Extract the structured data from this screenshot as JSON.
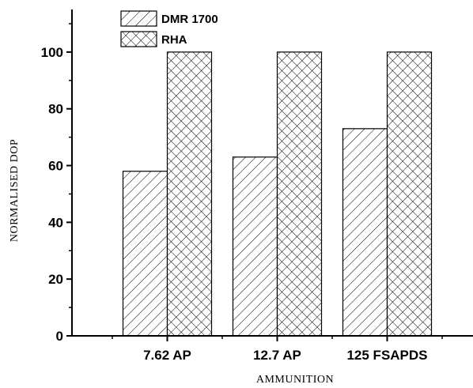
{
  "chart_data": {
    "type": "bar",
    "title": "",
    "xlabel": "AMMUNITION",
    "ylabel": "NORMALISED DOP",
    "categories": [
      "7.62 AP",
      "12.7 AP",
      "125 FSAPDS"
    ],
    "series": [
      {
        "name": "DMR 1700",
        "values": [
          58,
          63,
          73
        ],
        "pattern": "diagonal-hatch"
      },
      {
        "name": "RHA",
        "values": [
          100,
          100,
          100
        ],
        "pattern": "cross-hatch"
      }
    ],
    "ylim": [
      0,
      115
    ],
    "yticks": [
      0,
      20,
      40,
      60,
      80,
      100
    ],
    "legend_position": "top-left",
    "grid": false,
    "bar_fill": "#ffffff",
    "bar_stroke": "#000000"
  }
}
